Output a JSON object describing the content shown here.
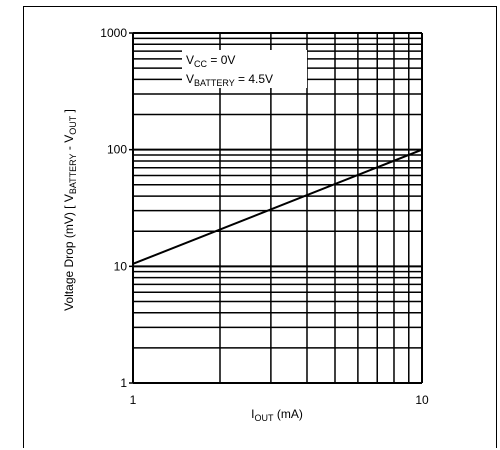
{
  "chart_data": {
    "type": "line",
    "title": "",
    "x_scale": "log",
    "y_scale": "log",
    "xlim": [
      1,
      10
    ],
    "ylim": [
      1,
      1000
    ],
    "grid": true,
    "xlabel": {
      "main": "I",
      "sub": "OUT",
      "tail": " (mA)"
    },
    "ylabel": {
      "pre": "Voltage Drop (mV) [ V",
      "sub1": "BATTERY",
      "mid": " - V",
      "sub2": "OUT",
      "tail": " ]"
    },
    "x_ticks": [
      "1",
      "10"
    ],
    "y_ticks": [
      "1",
      "10",
      "100",
      "1000"
    ],
    "annotations": [
      {
        "main": "V",
        "sub": "CC",
        "tail": " = 0V"
      },
      {
        "main": "V",
        "sub": "BATTERY",
        "tail": " = 4.5V"
      }
    ],
    "series": [
      {
        "x": [
          1,
          10
        ],
        "y": [
          10.5,
          100
        ]
      }
    ],
    "colors": {
      "line": "#000000",
      "grid": "#000000"
    }
  }
}
